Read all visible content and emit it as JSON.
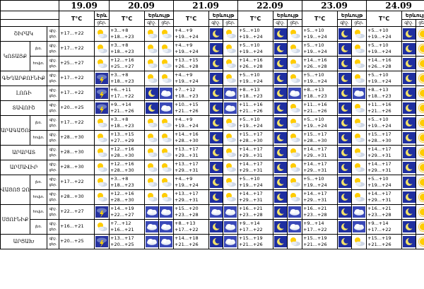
{
  "dates": [
    "19.09",
    "20.09",
    "21.09",
    "22.09",
    "23.09",
    "24.09"
  ],
  "header": {
    "temp_label": "T°C",
    "weather_label": "Երևույթ",
    "day_label": "ցերեկ",
    "day_short": "ցեր.",
    "night_short": "գիշ.",
    "tp_label": "Երև"
  },
  "rows": [
    {
      "region": "ՇԻՐԱԿ",
      "zone": "",
      "night": "գիշ.",
      "day": "ցեր.",
      "t": [
        [
          "",
          "+17...+22"
        ],
        [
          "+3...+8",
          "+18...+23"
        ],
        [
          "+4...+9",
          "+19...+24"
        ],
        [
          "+5...+10",
          "+19...+24"
        ],
        [
          "+5...+10",
          "+19...+24"
        ],
        [
          "+5...+10",
          "+19...+24"
        ]
      ],
      "w": [
        "partly",
        "partly",
        "moon",
        "moon",
        "moon",
        "moon"
      ],
      "w2": [
        "",
        "partly",
        "",
        "partly",
        "partly",
        "sun"
      ]
    },
    {
      "region": "ԿՈՏԱՅՔ",
      "zone": "լեռ.",
      "night": "գիշ.",
      "day": "ցեր.",
      "t": [
        [
          "",
          "+17...+22"
        ],
        [
          "+3...+8",
          "+18...+23"
        ],
        [
          "+4...+9",
          "+19...+24"
        ],
        [
          "+5...+10",
          "+19...+24"
        ],
        [
          "+5...+10",
          "+19...+24"
        ],
        [
          "+5...+10",
          "+19...+24"
        ]
      ],
      "w": [
        "partly",
        "partly",
        "moon",
        "moon",
        "moon",
        "moon"
      ],
      "w2": [
        "",
        "partly",
        "",
        "partly",
        "partly",
        "sun"
      ]
    },
    {
      "region": "",
      "zone": "հովտ.",
      "night": "գիշ.",
      "day": "ցեր.",
      "t": [
        [
          "",
          "+25...+27"
        ],
        [
          "+12...+16",
          "+25...+27"
        ],
        [
          "+13...+15",
          "+26...+28"
        ],
        [
          "+14...+16",
          "+26...+28"
        ],
        [
          "+14...+16",
          "+26...+28"
        ],
        [
          "+14...+16",
          "+26...+28"
        ]
      ],
      "w": [
        "partly",
        "partly",
        "moon",
        "moon",
        "moon",
        "moon"
      ],
      "w2": [
        "",
        "partly",
        "",
        "partly",
        "partly",
        "sun"
      ]
    },
    {
      "region": "ԳԵՂԱՐՔՈՒՆԻՔ",
      "zone": "",
      "night": "գիշ.",
      "day": "ցեր.",
      "t": [
        [
          "",
          "+17...+22"
        ],
        [
          "+3...+8",
          "+18...+23"
        ],
        [
          "+4...+9",
          "+19...+24"
        ],
        [
          "+5...+10",
          "+19...+24"
        ],
        [
          "+5...+10",
          "+19...+24"
        ],
        [
          "+5...+10",
          "+19...+24"
        ]
      ],
      "w": [
        "storm",
        "partly",
        "moon",
        "moon",
        "moon",
        "moon"
      ],
      "w2": [
        "",
        "partly",
        "",
        "partly",
        "partly",
        "sun"
      ]
    },
    {
      "region": "ԼՈՌԻ",
      "zone": "",
      "night": "գիշ.",
      "day": "ցեր.",
      "t": [
        [
          "",
          "+17...+22"
        ],
        [
          "+6...+11",
          "+17...+22"
        ],
        [
          "+7...+12",
          "+18...+23"
        ],
        [
          "+8...+13",
          "+18...+23"
        ],
        [
          "+8...+13",
          "+18...+23"
        ],
        [
          "+8...+13",
          "+18...+23"
        ]
      ],
      "w": [
        "storm",
        "moon",
        "moon",
        "moon",
        "moon",
        "moon"
      ],
      "w2": [
        "",
        "cloud",
        "cloud",
        "cloud",
        "cloud",
        "sun"
      ]
    },
    {
      "region": "ՏԱՎՈՒՇ",
      "zone": "",
      "night": "գիշ.",
      "day": "ցեր.",
      "t": [
        [
          "",
          "+20...+25"
        ],
        [
          "+9...+14",
          "+21...+26"
        ],
        [
          "+10...+15",
          "+21...+26"
        ],
        [
          "+11...+16",
          "+21...+26"
        ],
        [
          "+11...+16",
          "+21...+26"
        ],
        [
          "+11...+16",
          "+21...+26"
        ]
      ],
      "w": [
        "storm",
        "moon",
        "moon",
        "moon",
        "moon",
        "moon"
      ],
      "w2": [
        "",
        "cloud",
        "cloud",
        "partly",
        "partly",
        "sun"
      ]
    },
    {
      "region": "ԱՐԱԳԱԾՈՏՆ",
      "zone": "լեռ.",
      "night": "գիշ.",
      "day": "ցեր.",
      "t": [
        [
          "",
          "+17...+22"
        ],
        [
          "+3...+8",
          "+18...+23"
        ],
        [
          "+4...+9",
          "+19...+24"
        ],
        [
          "+5...+10",
          "+19...+24"
        ],
        [
          "+5...+10",
          "+19...+24"
        ],
        [
          "+5...+10",
          "+19...+24"
        ]
      ],
      "w": [
        "partly",
        "partly",
        "moon",
        "moon",
        "moon",
        "moon"
      ],
      "w2": [
        "",
        "partly",
        "",
        "partly",
        "partly",
        "sun"
      ]
    },
    {
      "region": "",
      "zone": "հովտ.",
      "night": "գիշ.",
      "day": "ցեր.",
      "t": [
        [
          "",
          "+28...+30"
        ],
        [
          "+13...+15",
          "+27...+29"
        ],
        [
          "+14...+16",
          "+28...+30"
        ],
        [
          "+15...+17",
          "+28...+30"
        ],
        [
          "+15...+17",
          "+28...+30"
        ],
        [
          "+15...+17",
          "+28...+30"
        ]
      ],
      "w": [
        "partly",
        "partly",
        "moon",
        "moon",
        "moon",
        "moon"
      ],
      "w2": [
        "",
        "partly",
        "",
        "partly",
        "partly",
        "sun"
      ]
    },
    {
      "region": "ԱՐԱՐԱՏ",
      "zone": "",
      "night": "գիշ.",
      "day": "ցեր.",
      "t": [
        [
          "",
          "+28...+30"
        ],
        [
          "+12...+16",
          "+28...+30"
        ],
        [
          "+13...+17",
          "+29...+31"
        ],
        [
          "+14...+17",
          "+29...+31"
        ],
        [
          "+14...+17",
          "+29...+31"
        ],
        [
          "+14...+17",
          "+29...+31"
        ]
      ],
      "w": [
        "partly",
        "partly",
        "moon",
        "moon",
        "moon",
        "moon"
      ],
      "w2": [
        "",
        "partly",
        "",
        "partly",
        "partly",
        "sun"
      ]
    },
    {
      "region": "ԱՐՄԱՎԻՐ",
      "zone": "",
      "night": "գիշ.",
      "day": "ցեր.",
      "t": [
        [
          "",
          "+28...+30"
        ],
        [
          "+12...+16",
          "+28...+30"
        ],
        [
          "+13...+17",
          "+29...+31"
        ],
        [
          "+14...+17",
          "+29...+31"
        ],
        [
          "+14...+17",
          "+29...+31"
        ],
        [
          "+14...+17",
          "+29...+31"
        ]
      ],
      "w": [
        "partly",
        "partly",
        "moon",
        "moon",
        "moon",
        "moon"
      ],
      "w2": [
        "",
        "partly",
        "",
        "partly",
        "partly",
        "sun"
      ]
    },
    {
      "region": "ՎԱՅՈՑ ՁՈՐ",
      "zone": "լեռ.",
      "night": "գիշ.",
      "day": "ցեր.",
      "t": [
        [
          "",
          "+17...+22"
        ],
        [
          "+3...+8",
          "+18...+23"
        ],
        [
          "+4...+9",
          "+19...+24"
        ],
        [
          "+5...+10",
          "+19...+24"
        ],
        [
          "+5...+10",
          "+19...+24"
        ],
        [
          "+5...+10",
          "+19...+24"
        ]
      ],
      "w": [
        "partly",
        "partly",
        "moon",
        "moon",
        "moon",
        "moon"
      ],
      "w2": [
        "",
        "partly",
        "",
        "partly",
        "partly",
        "sun"
      ]
    },
    {
      "region": "",
      "zone": "հովտ.",
      "night": "գիշ.",
      "day": "ցեր.",
      "t": [
        [
          "",
          "+28...+30"
        ],
        [
          "+12...+16",
          "+28...+30"
        ],
        [
          "+13...+17",
          "+29...+31"
        ],
        [
          "+14...+17",
          "+29...+31"
        ],
        [
          "+14...+17",
          "+29...+31"
        ],
        [
          "+14...+17",
          "+29...+31"
        ]
      ],
      "w": [
        "partly",
        "partly",
        "moon",
        "moon",
        "moon",
        "moon"
      ],
      "w2": [
        "",
        "partly",
        "",
        "partly",
        "partly",
        "sun"
      ]
    },
    {
      "region": "ՍՅՈՒՆԻՔ",
      "zone": "հովտ.",
      "night": "գիշ.",
      "day": "ցեր.",
      "t": [
        [
          "",
          "+22...+27"
        ],
        [
          "+14...+19",
          "+22...+27"
        ],
        [
          "+15...+20",
          "+23...+28"
        ],
        [
          "+16...+21",
          "+23...+28"
        ],
        [
          "+16...+21",
          "+23...+28"
        ],
        [
          "+16...+21",
          "+23...+28"
        ]
      ],
      "w": [
        "storm",
        "cloud",
        "cloud",
        "moon",
        "moon",
        "moon"
      ],
      "w2": [
        "",
        "cloud",
        "cloud",
        "cloud",
        "cloud",
        "sun"
      ]
    },
    {
      "region": "",
      "zone": "լեռ.",
      "night": "գիշ.",
      "day": "ցեր.",
      "t": [
        [
          "",
          "+16...+21"
        ],
        [
          "+7...+12",
          "+16...+21"
        ],
        [
          "+8...+13",
          "+17...+22"
        ],
        [
          "+9...+14",
          "+17...+22"
        ],
        [
          "+9...+14",
          "+17...+22"
        ],
        [
          "+9...+14",
          "+17...+22"
        ]
      ],
      "w": [
        "partly",
        "cloud",
        "moon",
        "moon",
        "moon",
        "moon"
      ],
      "w2": [
        "",
        "cloud",
        "cloud",
        "cloud",
        "cloud",
        "sun"
      ]
    },
    {
      "region": "ԱՐՑԱԽ",
      "zone": "",
      "night": "գիշ.",
      "day": "ցեր.",
      "t": [
        [
          "",
          "+20...+25"
        ],
        [
          "+13...+17",
          "+20...+25"
        ],
        [
          "+14...+18",
          "+21...+26"
        ],
        [
          "+15...+19",
          "+21...+26"
        ],
        [
          "+15...+19",
          "+21...+26"
        ],
        [
          "+15...+19",
          "+21...+26"
        ]
      ],
      "w": [
        "storm",
        "cloud",
        "moon",
        "moon",
        "moon",
        "moon"
      ],
      "w2": [
        "",
        "cloud",
        "cloud",
        "partly",
        "partly",
        "sun"
      ]
    }
  ]
}
